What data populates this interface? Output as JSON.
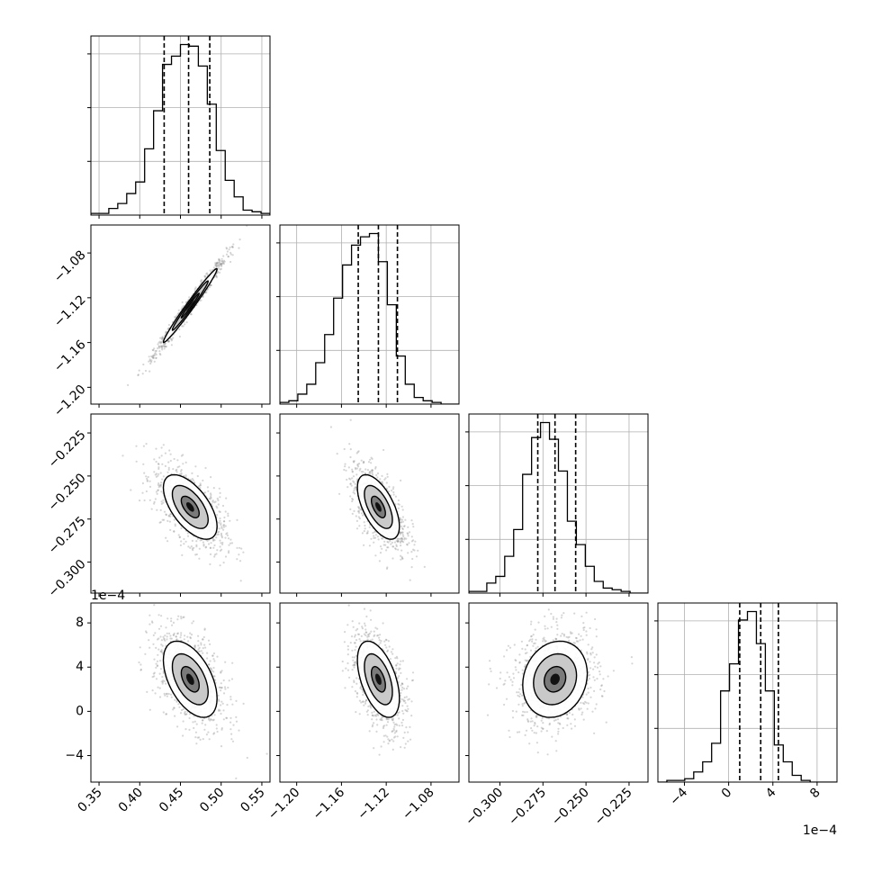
{
  "chart_data": {
    "type": "corner",
    "parameters": [
      {
        "id": "p0",
        "range": [
          0.34,
          0.56
        ],
        "ticks": [
          0.35,
          0.4,
          0.45,
          0.5,
          0.55
        ],
        "tick_labels": [
          "0.35",
          "0.40",
          "0.45",
          "0.50",
          "0.55"
        ],
        "offset_label": "",
        "quantiles": [
          0.43,
          0.46,
          0.486
        ]
      },
      {
        "id": "p1",
        "range": [
          -1.215,
          -1.055
        ],
        "ticks": [
          -1.2,
          -1.16,
          -1.12,
          -1.08
        ],
        "tick_labels": [
          "−1.20",
          "−1.16",
          "−1.12",
          "−1.08"
        ],
        "offset_label": "",
        "quantiles": [
          -1.145,
          -1.127,
          -1.11
        ]
      },
      {
        "id": "p2",
        "range": [
          -0.318,
          -0.214
        ],
        "ticks": [
          -0.3,
          -0.275,
          -0.25,
          -0.225
        ],
        "tick_labels": [
          "−0.300",
          "−0.275",
          "−0.250",
          "−0.225"
        ],
        "offset_label": "",
        "quantiles": [
          -0.278,
          -0.268,
          -0.256
        ]
      },
      {
        "id": "p3",
        "range": [
          -6.4,
          9.8
        ],
        "ticks": [
          -4,
          0,
          4,
          8
        ],
        "tick_labels": [
          "−4",
          "0",
          "4",
          "8"
        ],
        "offset_label": "1e−4",
        "quantiles": [
          1.0,
          2.9,
          4.5
        ]
      }
    ],
    "histograms": [
      {
        "param": "p0",
        "counts": [
          1,
          1,
          4,
          7,
          13,
          20,
          40,
          63,
          91,
          96,
          103,
          102,
          90,
          67,
          39,
          21,
          11,
          3,
          2,
          1
        ]
      },
      {
        "param": "p1",
        "counts": [
          1,
          2,
          6,
          12,
          25,
          42,
          64,
          84,
          96,
          101,
          103,
          86,
          60,
          29,
          12,
          4,
          2,
          1,
          0,
          0
        ]
      },
      {
        "param": "p2",
        "counts": [
          1,
          1,
          6,
          10,
          22,
          38,
          71,
          93,
          102,
          92,
          73,
          43,
          29,
          16,
          7,
          3,
          2,
          1,
          0,
          0
        ]
      },
      {
        "param": "p3",
        "counts": [
          0,
          1,
          1,
          2,
          6,
          12,
          23,
          54,
          70,
          96,
          101,
          82,
          54,
          22,
          12,
          4,
          1,
          0,
          0,
          0
        ]
      }
    ],
    "pairs": [
      {
        "x": "p0",
        "y": "p1",
        "center": [
          0.462,
          -1.127
        ],
        "sd": [
          0.022,
          0.022
        ],
        "rho": 0.985,
        "levels": [
          0.5,
          1.0,
          1.5
        ]
      },
      {
        "x": "p0",
        "y": "p2",
        "center": [
          0.462,
          -0.268
        ],
        "sd": [
          0.022,
          0.0125
        ],
        "rho": -0.6,
        "levels": [
          0.5,
          1.0,
          1.5
        ]
      },
      {
        "x": "p1",
        "y": "p2",
        "center": [
          -1.127,
          -0.268
        ],
        "sd": [
          0.0125,
          0.0125
        ],
        "rho": -0.6,
        "levels": [
          0.5,
          1.0,
          1.5
        ]
      },
      {
        "x": "p0",
        "y": "p3",
        "center": [
          0.462,
          2.9
        ],
        "sd": [
          0.022,
          2.3
        ],
        "rho": -0.5,
        "levels": [
          0.5,
          1.0,
          1.5
        ]
      },
      {
        "x": "p1",
        "y": "p3",
        "center": [
          -1.127,
          2.9
        ],
        "sd": [
          0.0125,
          2.3
        ],
        "rho": -0.5,
        "levels": [
          0.5,
          1.0,
          1.5
        ]
      },
      {
        "x": "p2",
        "y": "p3",
        "center": [
          -0.268,
          2.9
        ],
        "sd": [
          0.0125,
          2.3
        ],
        "rho": 0.15,
        "levels": [
          0.5,
          1.0,
          1.5
        ]
      }
    ],
    "grid": true,
    "colors": {
      "line": "#000000",
      "scatter": "#8a8a8a",
      "grid": "#b0b0b0"
    }
  }
}
